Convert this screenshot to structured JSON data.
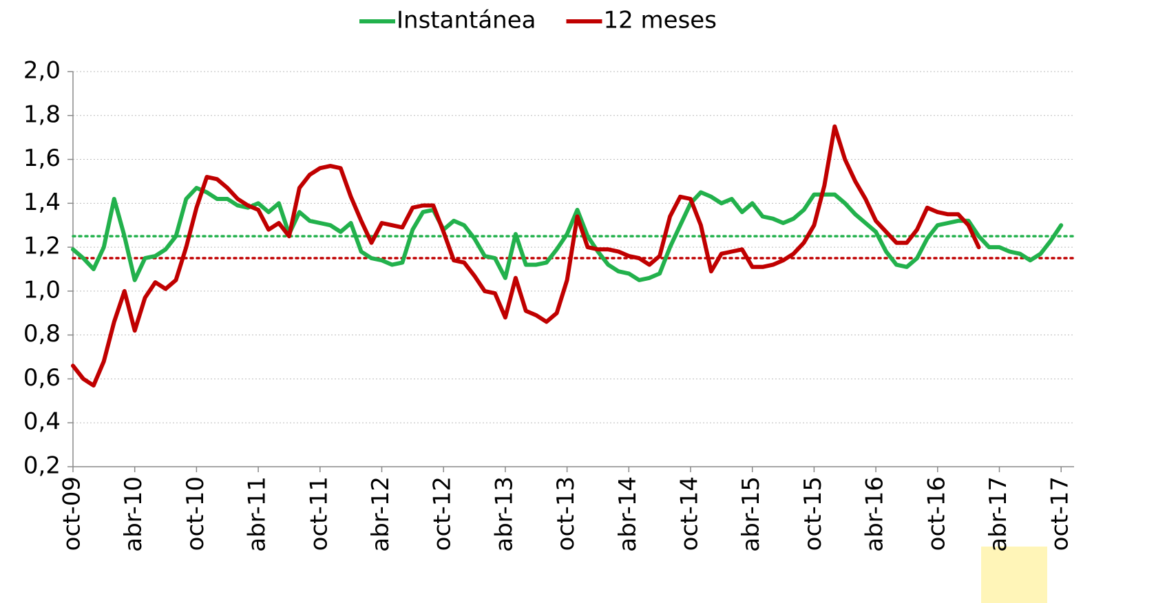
{
  "chart_data": {
    "type": "line",
    "categories": [
      "oct-09",
      null,
      null,
      null,
      null,
      null,
      "abr-10",
      null,
      null,
      null,
      null,
      null,
      "oct-10",
      null,
      null,
      null,
      null,
      null,
      "abr-11",
      null,
      null,
      null,
      null,
      null,
      "oct-11",
      null,
      null,
      null,
      null,
      null,
      "abr-12",
      null,
      null,
      null,
      null,
      null,
      "oct-12",
      null,
      null,
      null,
      null,
      null,
      "abr-13",
      null,
      null,
      null,
      null,
      null,
      "oct-13",
      null,
      null,
      null,
      null,
      null,
      "abr-14",
      null,
      null,
      null,
      null,
      null,
      "oct-14",
      null,
      null,
      null,
      null,
      null,
      "abr-15",
      null,
      null,
      null,
      null,
      null,
      "oct-15",
      null,
      null,
      null,
      null,
      null,
      "abr-16",
      null,
      null,
      null,
      null,
      null,
      "oct-16",
      null,
      null,
      null,
      null,
      null,
      "abr-17",
      null,
      null,
      null,
      null,
      null,
      "oct-17"
    ],
    "series": [
      {
        "name": "Instantánea",
        "color": "#22b14c",
        "values": [
          1.19,
          1.15,
          1.1,
          1.2,
          1.42,
          1.25,
          1.05,
          1.15,
          1.16,
          1.19,
          1.25,
          1.42,
          1.47,
          1.45,
          1.42,
          1.42,
          1.39,
          1.38,
          1.4,
          1.36,
          1.4,
          1.26,
          1.36,
          1.32,
          1.31,
          1.3,
          1.27,
          1.31,
          1.18,
          1.15,
          1.14,
          1.12,
          1.13,
          1.28,
          1.36,
          1.37,
          1.28,
          1.32,
          1.3,
          1.24,
          1.16,
          1.15,
          1.06,
          1.26,
          1.12,
          1.12,
          1.13,
          1.19,
          1.26,
          1.37,
          1.25,
          1.18,
          1.12,
          1.09,
          1.08,
          1.05,
          1.06,
          1.08,
          1.2,
          1.3,
          1.4,
          1.45,
          1.43,
          1.4,
          1.42,
          1.36,
          1.4,
          1.34,
          1.33,
          1.31,
          1.33,
          1.37,
          1.44,
          1.44,
          1.44,
          1.4,
          1.35,
          1.31,
          1.27,
          1.18,
          1.12,
          1.11,
          1.15,
          1.24,
          1.3,
          1.31,
          1.32,
          1.32,
          1.25,
          1.2,
          1.2,
          1.18,
          1.17,
          1.14,
          1.17,
          1.23,
          1.3
        ]
      },
      {
        "name": "12 meses",
        "color": "#c00000",
        "values": [
          0.66,
          0.6,
          0.57,
          0.68,
          0.86,
          1.0,
          0.82,
          0.97,
          1.04,
          1.01,
          1.05,
          1.2,
          1.38,
          1.52,
          1.51,
          1.47,
          1.42,
          1.39,
          1.37,
          1.28,
          1.31,
          1.25,
          1.47,
          1.53,
          1.56,
          1.57,
          1.56,
          1.43,
          1.32,
          1.22,
          1.31,
          1.3,
          1.29,
          1.38,
          1.39,
          1.39,
          1.27,
          1.14,
          1.13,
          1.07,
          1.0,
          0.99,
          0.88,
          1.06,
          0.91,
          0.89,
          0.86,
          0.9,
          1.05,
          1.34,
          1.2,
          1.19,
          1.19,
          1.18,
          1.16,
          1.15,
          1.12,
          1.16,
          1.34,
          1.43,
          1.42,
          1.3,
          1.09,
          1.17,
          1.18,
          1.19,
          1.11,
          1.11,
          1.12,
          1.14,
          1.17,
          1.22,
          1.3,
          1.48,
          1.75,
          1.6,
          1.5,
          1.42,
          1.32,
          1.27,
          1.22,
          1.22,
          1.28,
          1.38,
          1.36,
          1.35,
          1.35,
          1.3,
          1.2,
          null,
          null,
          null,
          null,
          null,
          null,
          null,
          null
        ]
      }
    ],
    "reference_lines": [
      {
        "value": 1.25,
        "color": "#22b14c"
      },
      {
        "value": 1.15,
        "color": "#c00000"
      }
    ],
    "ylim": [
      0.2,
      2.0
    ],
    "yticks": [
      {
        "value": 0.2,
        "label": "0,2"
      },
      {
        "value": 0.4,
        "label": "0,4"
      },
      {
        "value": 0.6,
        "label": "0,6"
      },
      {
        "value": 0.8,
        "label": "0,8"
      },
      {
        "value": 1.0,
        "label": "1,0"
      },
      {
        "value": 1.2,
        "label": "1,2"
      },
      {
        "value": 1.4,
        "label": "1,4"
      },
      {
        "value": 1.6,
        "label": "1,6"
      },
      {
        "value": 1.8,
        "label": "1,8"
      },
      {
        "value": 2.0,
        "label": "2,0"
      }
    ],
    "grid": true,
    "legend": "top"
  }
}
